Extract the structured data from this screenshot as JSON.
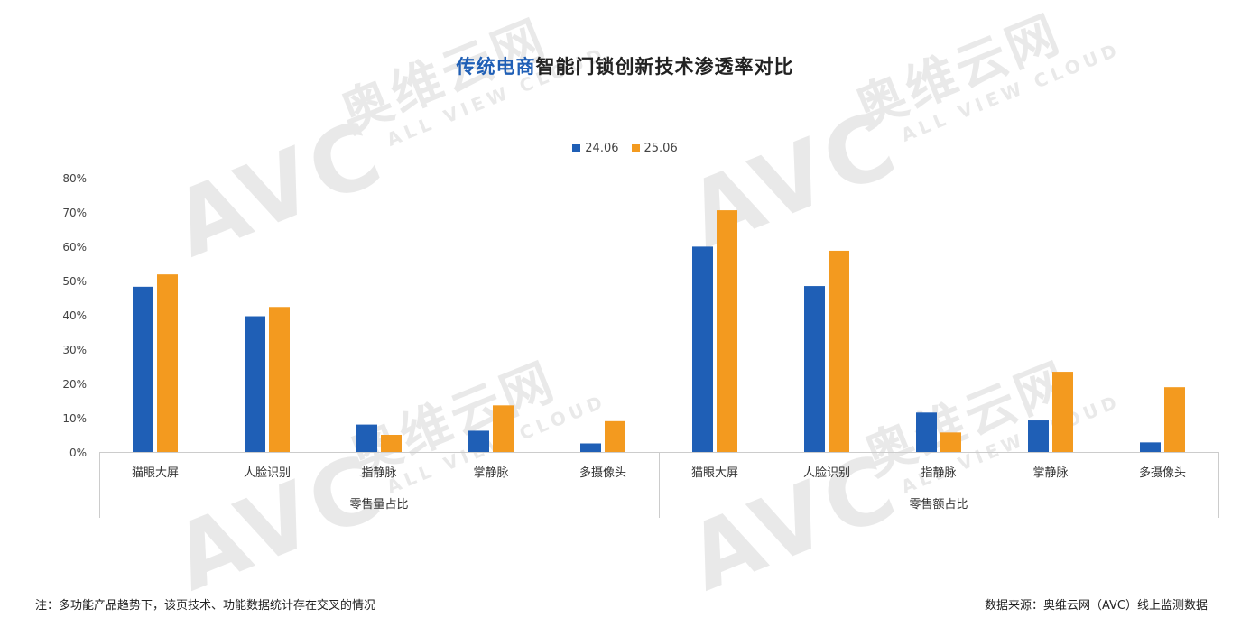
{
  "watermark": {
    "logo": "AVC",
    "cn": "奥维云网",
    "en": "ALL VIEW CLOUD"
  },
  "title": {
    "highlight": "传统电商",
    "rest": "智能门锁创新技术渗透率对比"
  },
  "colors": {
    "series_24": "#1f5fb6",
    "series_25": "#f39a1f",
    "title_highlight": "#1f5fb6"
  },
  "chart_data": {
    "type": "bar",
    "title": "传统电商智能门锁创新技术渗透率对比",
    "ylim": [
      0,
      80
    ],
    "yticks": [
      "0%",
      "10%",
      "20%",
      "30%",
      "40%",
      "50%",
      "60%",
      "70%",
      "80%"
    ],
    "legend_position": "top-center",
    "grid": false,
    "groups": [
      "零售量占比",
      "零售额占比"
    ],
    "categories": [
      "猫眼大屏",
      "人脸识别",
      "指静脉",
      "掌静脉",
      "多摄像头"
    ],
    "series": [
      {
        "name": "24.06",
        "values": {
          "零售量占比": [
            48.2,
            39.6,
            8.0,
            6.2,
            2.5
          ],
          "零售额占比": [
            59.9,
            48.4,
            11.5,
            9.2,
            2.8
          ]
        }
      },
      {
        "name": "25.06",
        "values": {
          "零售量占比": [
            51.8,
            42.3,
            5.0,
            13.6,
            9.0
          ],
          "零售额占比": [
            70.5,
            58.7,
            5.7,
            23.4,
            18.9
          ]
        }
      }
    ]
  },
  "footer": {
    "note": "注：多功能产品趋势下，该页技术、功能数据统计存在交叉的情况",
    "source": "数据来源：奥维云网（AVC）线上监测数据"
  }
}
